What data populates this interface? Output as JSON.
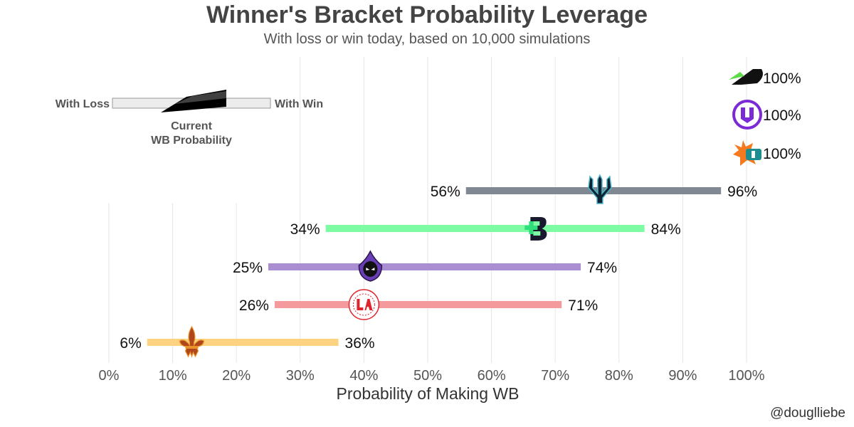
{
  "credit": "@douglliebe",
  "chart_data": {
    "type": "range",
    "title": "Winner's Bracket Probability Leverage",
    "subtitle": "With loss or win today, based on 10,000 simulations",
    "xlabel": "Probability of Making WB",
    "xlim": [
      0,
      100
    ],
    "x_ticks": [
      "0%",
      "10%",
      "20%",
      "30%",
      "40%",
      "50%",
      "60%",
      "70%",
      "80%",
      "90%",
      "100%"
    ],
    "grid": "vertical",
    "legend": {
      "position": "top-left",
      "loss_label": "With Loss",
      "win_label": "With Win",
      "current_label_line1": "Current",
      "current_label_line2": "WB Probability"
    },
    "series": [
      {
        "team_icon": "dallas-empire-logo",
        "clinched": true,
        "win": 100,
        "win_label": "100%"
      },
      {
        "team_icon": "minnesota-rokkr-logo",
        "clinched": true,
        "win": 100,
        "win_label": "100%"
      },
      {
        "team_icon": "houston-outlaws-logo",
        "clinched": true,
        "win": 100,
        "win_label": "100%"
      },
      {
        "team_icon": "seattle-surge-logo",
        "color": "#7f8893",
        "loss": 56,
        "current": 77,
        "win": 96,
        "loss_label": "56%",
        "win_label": "96%"
      },
      {
        "team_icon": "boston-breach-logo",
        "color": "#7efca4",
        "loss": 34,
        "current": 67,
        "win": 84,
        "loss_label": "34%",
        "win_label": "84%"
      },
      {
        "team_icon": "la-guerrillas-logo",
        "color": "#a98fd1",
        "loss": 25,
        "current": 41,
        "win": 74,
        "loss_label": "25%",
        "win_label": "74%"
      },
      {
        "team_icon": "la-thieves-logo",
        "color": "#f59a9c",
        "loss": 26,
        "current": 40,
        "win": 71,
        "loss_label": "26%",
        "win_label": "71%"
      },
      {
        "team_icon": "paris-legion-logo",
        "color": "#fdd382",
        "loss": 6,
        "current": 13,
        "win": 36,
        "loss_label": "6%",
        "win_label": "36%"
      }
    ]
  }
}
